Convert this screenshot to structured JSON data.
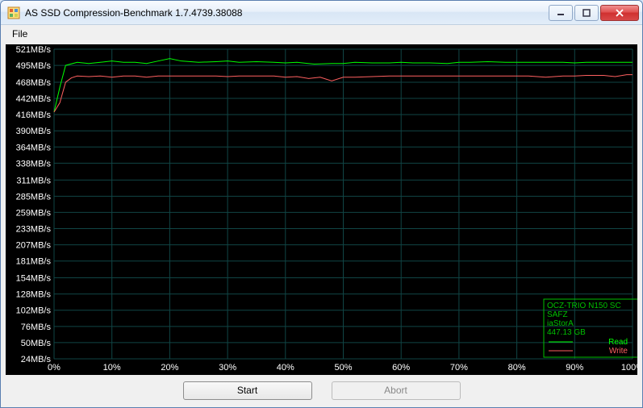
{
  "window": {
    "title": "AS SSD Compression-Benchmark 1.7.4739.38088"
  },
  "menu": {
    "file": "File"
  },
  "chart": {
    "type": "line",
    "background_color": "#000000",
    "grid_color": "#104545",
    "label_color": "#ffffff",
    "label_fontsize": 11,
    "y_unit": "MB/s",
    "y_ticks": [
      24,
      50,
      76,
      102,
      128,
      154,
      181,
      207,
      233,
      259,
      285,
      311,
      338,
      364,
      390,
      416,
      442,
      468,
      495,
      521
    ],
    "y_min": 24,
    "y_max": 521,
    "x_unit": "%",
    "x_ticks": [
      0,
      10,
      20,
      30,
      40,
      50,
      60,
      70,
      80,
      90,
      100
    ],
    "x_min": 0,
    "x_max": 100,
    "read": {
      "color": "#00ff00",
      "line_width": 1,
      "points": [
        [
          0,
          420
        ],
        [
          1,
          460
        ],
        [
          2,
          495
        ],
        [
          4,
          500
        ],
        [
          6,
          498
        ],
        [
          8,
          500
        ],
        [
          10,
          502
        ],
        [
          12,
          500
        ],
        [
          14,
          500
        ],
        [
          16,
          498
        ],
        [
          18,
          502
        ],
        [
          20,
          506
        ],
        [
          22,
          502
        ],
        [
          25,
          500
        ],
        [
          28,
          501
        ],
        [
          30,
          502
        ],
        [
          32,
          500
        ],
        [
          35,
          501
        ],
        [
          38,
          500
        ],
        [
          40,
          499
        ],
        [
          42,
          500
        ],
        [
          45,
          497
        ],
        [
          48,
          498
        ],
        [
          50,
          498
        ],
        [
          52,
          500
        ],
        [
          55,
          499
        ],
        [
          58,
          499
        ],
        [
          60,
          500
        ],
        [
          62,
          499
        ],
        [
          65,
          499
        ],
        [
          68,
          498
        ],
        [
          70,
          500
        ],
        [
          72,
          500
        ],
        [
          75,
          501
        ],
        [
          78,
          500
        ],
        [
          80,
          500
        ],
        [
          82,
          500
        ],
        [
          85,
          500
        ],
        [
          88,
          500
        ],
        [
          90,
          499
        ],
        [
          92,
          500
        ],
        [
          95,
          500
        ],
        [
          98,
          500
        ],
        [
          100,
          500
        ]
      ]
    },
    "write": {
      "color": "#ff6060",
      "line_width": 1,
      "points": [
        [
          0,
          420
        ],
        [
          1,
          435
        ],
        [
          2,
          468
        ],
        [
          3,
          475
        ],
        [
          4,
          478
        ],
        [
          6,
          477
        ],
        [
          8,
          478
        ],
        [
          10,
          476
        ],
        [
          12,
          478
        ],
        [
          14,
          478
        ],
        [
          16,
          476
        ],
        [
          18,
          478
        ],
        [
          20,
          478
        ],
        [
          22,
          478
        ],
        [
          25,
          478
        ],
        [
          28,
          478
        ],
        [
          30,
          477
        ],
        [
          32,
          478
        ],
        [
          35,
          478
        ],
        [
          38,
          478
        ],
        [
          40,
          476
        ],
        [
          42,
          477
        ],
        [
          44,
          474
        ],
        [
          46,
          476
        ],
        [
          48,
          470
        ],
        [
          50,
          476
        ],
        [
          52,
          476
        ],
        [
          55,
          477
        ],
        [
          58,
          478
        ],
        [
          60,
          478
        ],
        [
          62,
          478
        ],
        [
          65,
          478
        ],
        [
          68,
          478
        ],
        [
          70,
          478
        ],
        [
          72,
          478
        ],
        [
          75,
          478
        ],
        [
          78,
          478
        ],
        [
          80,
          478
        ],
        [
          82,
          478
        ],
        [
          85,
          476
        ],
        [
          88,
          478
        ],
        [
          90,
          478
        ],
        [
          92,
          479
        ],
        [
          95,
          479
        ],
        [
          97,
          477
        ],
        [
          99,
          480
        ],
        [
          100,
          480
        ]
      ]
    }
  },
  "legend": {
    "border_color": "#00c000",
    "device_line1": "OCZ-TRIO N150 SC",
    "device_line2": "SAFZ",
    "device_line3": "iaStorA",
    "device_line4": "447.13 GB",
    "read_label": "Read",
    "write_label": "Write"
  },
  "buttons": {
    "start": "Start",
    "abort": "Abort"
  }
}
